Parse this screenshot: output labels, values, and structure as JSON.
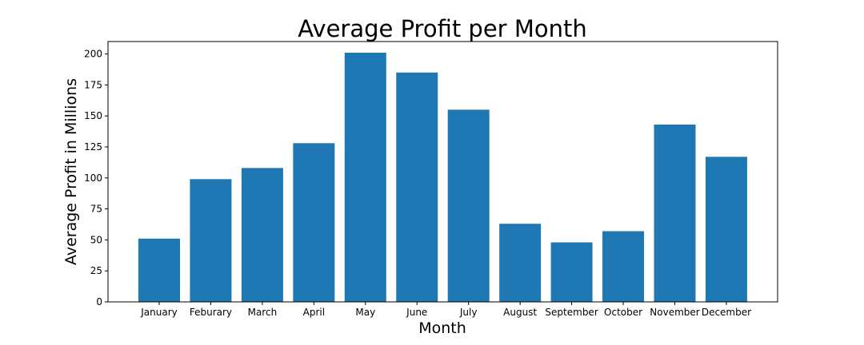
{
  "chart_data": {
    "type": "bar",
    "title": "Average Profit per Month",
    "xlabel": "Month",
    "ylabel": "Average Profit in Millions",
    "categories": [
      "January",
      "Feburary",
      "March",
      "April",
      "May",
      "June",
      "July",
      "August",
      "September",
      "October",
      "November",
      "December"
    ],
    "values": [
      51,
      99,
      108,
      128,
      201,
      185,
      155,
      63,
      48,
      57,
      143,
      117
    ],
    "ylim": [
      0,
      210
    ],
    "yticks": [
      0,
      25,
      50,
      75,
      100,
      125,
      150,
      175,
      200
    ],
    "grid": false,
    "legend": "none",
    "bar_color": "#1f77b4"
  }
}
